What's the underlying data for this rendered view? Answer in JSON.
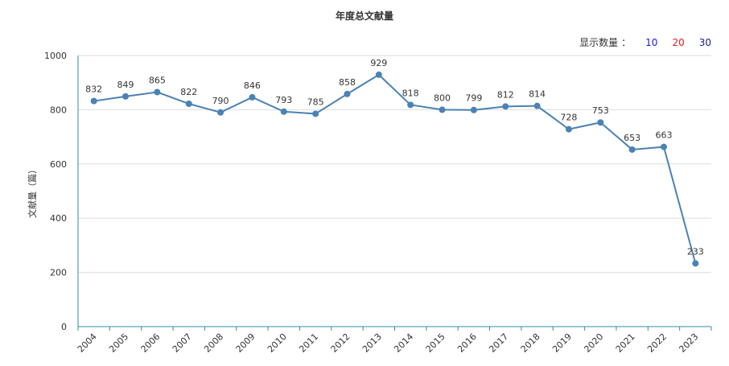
{
  "chart_data": {
    "type": "line",
    "title": "年度总文献量",
    "ylabel": "文献量（篇）",
    "xlabel": "",
    "categories": [
      "2004",
      "2005",
      "2006",
      "2007",
      "2008",
      "2009",
      "2010",
      "2011",
      "2012",
      "2013",
      "2014",
      "2015",
      "2016",
      "2017",
      "2018",
      "2019",
      "2020",
      "2021",
      "2022",
      "2023"
    ],
    "series": [
      {
        "values": [
          832,
          849,
          865,
          822,
          790,
          846,
          793,
          785,
          858,
          929,
          818,
          800,
          799,
          812,
          814,
          728,
          753,
          653,
          663,
          233
        ]
      }
    ],
    "ylim": [
      0,
      1000
    ],
    "yticks": [
      0,
      200,
      400,
      600,
      800,
      1000
    ],
    "grid": true,
    "legend": "none",
    "colors": {
      "line": "#4a82b4",
      "grid": "#dddddd",
      "axis": "#2e8fa8"
    }
  },
  "display_count": {
    "label": "显示数量",
    "separator": "：",
    "options": [
      "10",
      "20",
      "30"
    ]
  }
}
